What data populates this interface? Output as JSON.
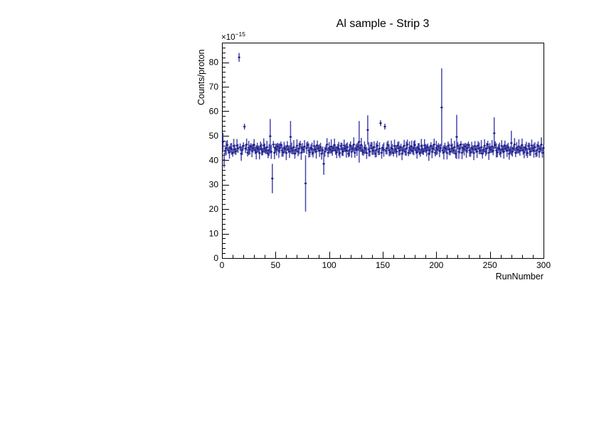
{
  "window": {
    "background": "#ffffff"
  },
  "chart_data": {
    "type": "scatter",
    "title": "Al sample - Strip 3",
    "xlabel": "RunNumber",
    "ylabel": "Counts/proton",
    "y_scale": {
      "prefix": "×10",
      "exponent": "−15"
    },
    "xlim": [
      0,
      300
    ],
    "ylim": [
      0,
      88
    ],
    "x_major_ticks": [
      0,
      50,
      100,
      150,
      200,
      250,
      300
    ],
    "x_minor_step": 10,
    "y_major_ticks": [
      0,
      10,
      20,
      30,
      40,
      50,
      60,
      70,
      80
    ],
    "y_minor_step": 2,
    "grid": false,
    "legend": false,
    "frame_color": "#000000",
    "error_bar_color": "#4545ad",
    "marker_color": "#1c1c72",
    "points": [
      [
        1,
        47.5,
        3.5
      ],
      [
        2,
        40.0,
        3.0
      ],
      [
        3,
        43.8,
        1.5
      ],
      [
        4,
        44.9,
        2.9
      ],
      [
        5,
        46.2,
        2.0
      ],
      [
        6,
        44.0,
        1.4
      ],
      [
        7,
        43.2,
        2.6
      ],
      [
        8,
        45.1,
        1.8
      ],
      [
        9,
        44.6,
        2.4
      ],
      [
        10,
        42.9,
        1.5
      ],
      [
        11,
        45.8,
        2.9
      ],
      [
        12,
        44.4,
        2.0
      ],
      [
        13,
        43.5,
        1.4
      ],
      [
        14,
        46.0,
        2.6
      ],
      [
        15,
        44.8,
        1.8
      ],
      [
        16,
        82.0,
        1.8
      ],
      [
        17,
        45.3,
        1.5
      ],
      [
        18,
        42.6,
        2.9
      ],
      [
        19,
        44.1,
        2.0
      ],
      [
        20,
        45.9,
        1.4
      ],
      [
        21,
        53.7,
        1.2
      ],
      [
        22,
        44.7,
        1.8
      ],
      [
        23,
        46.4,
        2.4
      ],
      [
        24,
        43.0,
        1.5
      ],
      [
        25,
        45.0,
        2.9
      ],
      [
        26,
        44.3,
        2.0
      ],
      [
        27,
        45.6,
        1.4
      ],
      [
        28,
        43.8,
        2.6
      ],
      [
        29,
        44.9,
        1.8
      ],
      [
        30,
        46.2,
        2.4
      ],
      [
        31,
        44.0,
        1.5
      ],
      [
        32,
        43.2,
        2.9
      ],
      [
        33,
        45.1,
        2.0
      ],
      [
        34,
        44.6,
        1.4
      ],
      [
        35,
        42.9,
        2.6
      ],
      [
        36,
        45.8,
        1.8
      ],
      [
        37,
        44.4,
        2.4
      ],
      [
        38,
        43.5,
        1.5
      ],
      [
        39,
        46.0,
        2.9
      ],
      [
        40,
        44.8,
        2.0
      ],
      [
        41,
        43.9,
        1.4
      ],
      [
        42,
        45.3,
        2.6
      ],
      [
        43,
        42.6,
        1.8
      ],
      [
        44,
        44.1,
        2.4
      ],
      [
        45,
        49.8,
        7.0
      ],
      [
        46,
        43.4,
        2.9
      ],
      [
        47,
        32.5,
        6.0
      ],
      [
        48,
        46.4,
        1.4
      ],
      [
        49,
        43.0,
        2.6
      ],
      [
        50,
        45.0,
        1.8
      ],
      [
        51,
        44.3,
        2.4
      ],
      [
        52,
        45.6,
        1.5
      ],
      [
        53,
        43.8,
        2.9
      ],
      [
        54,
        44.9,
        2.0
      ],
      [
        55,
        46.2,
        1.4
      ],
      [
        56,
        44.0,
        2.6
      ],
      [
        57,
        43.2,
        1.8
      ],
      [
        58,
        45.1,
        2.4
      ],
      [
        59,
        44.6,
        1.5
      ],
      [
        60,
        42.9,
        2.9
      ],
      [
        61,
        45.8,
        2.0
      ],
      [
        62,
        44.4,
        1.4
      ],
      [
        63,
        43.5,
        2.6
      ],
      [
        64,
        49.5,
        6.5
      ],
      [
        65,
        44.8,
        2.4
      ],
      [
        66,
        43.9,
        1.5
      ],
      [
        67,
        45.3,
        2.9
      ],
      [
        68,
        42.6,
        2.0
      ],
      [
        69,
        44.1,
        1.4
      ],
      [
        70,
        45.9,
        2.6
      ],
      [
        71,
        43.4,
        1.8
      ],
      [
        72,
        44.7,
        2.4
      ],
      [
        73,
        46.4,
        1.5
      ],
      [
        74,
        43.0,
        2.9
      ],
      [
        75,
        45.0,
        2.0
      ],
      [
        76,
        44.3,
        1.4
      ],
      [
        77,
        45.6,
        2.6
      ],
      [
        78,
        30.5,
        11.5
      ],
      [
        79,
        44.9,
        2.4
      ],
      [
        80,
        46.2,
        1.5
      ],
      [
        81,
        44.0,
        2.9
      ],
      [
        82,
        43.2,
        2.0
      ],
      [
        83,
        45.1,
        1.4
      ],
      [
        84,
        44.6,
        2.6
      ],
      [
        85,
        42.9,
        1.8
      ],
      [
        86,
        45.8,
        2.4
      ],
      [
        87,
        44.4,
        1.5
      ],
      [
        88,
        43.5,
        2.9
      ],
      [
        89,
        46.0,
        2.0
      ],
      [
        90,
        44.8,
        1.4
      ],
      [
        91,
        43.9,
        2.6
      ],
      [
        92,
        45.3,
        1.8
      ],
      [
        93,
        42.6,
        2.4
      ],
      [
        94,
        44.1,
        1.5
      ],
      [
        95,
        38.5,
        4.5
      ],
      [
        96,
        43.4,
        2.0
      ],
      [
        97,
        44.7,
        1.4
      ],
      [
        98,
        46.4,
        2.6
      ],
      [
        99,
        43.0,
        1.8
      ],
      [
        100,
        45.0,
        2.4
      ],
      [
        101,
        44.3,
        1.5
      ],
      [
        102,
        45.6,
        2.9
      ],
      [
        103,
        43.8,
        2.0
      ],
      [
        104,
        44.9,
        1.4
      ],
      [
        105,
        46.2,
        2.6
      ],
      [
        106,
        44.0,
        1.8
      ],
      [
        107,
        43.2,
        2.4
      ],
      [
        108,
        45.1,
        1.5
      ],
      [
        109,
        44.6,
        2.9
      ],
      [
        110,
        42.9,
        2.0
      ],
      [
        111,
        45.8,
        1.4
      ],
      [
        112,
        44.4,
        2.6
      ],
      [
        113,
        43.5,
        1.8
      ],
      [
        114,
        46.0,
        2.4
      ],
      [
        115,
        44.8,
        1.5
      ],
      [
        116,
        43.9,
        2.9
      ],
      [
        117,
        45.3,
        2.0
      ],
      [
        118,
        42.6,
        1.4
      ],
      [
        119,
        44.1,
        2.6
      ],
      [
        120,
        45.9,
        1.8
      ],
      [
        121,
        43.4,
        2.4
      ],
      [
        122,
        44.7,
        1.5
      ],
      [
        123,
        46.4,
        2.9
      ],
      [
        124,
        43.0,
        2.0
      ],
      [
        125,
        45.0,
        1.4
      ],
      [
        126,
        44.3,
        2.6
      ],
      [
        127,
        45.6,
        1.8
      ],
      [
        128,
        47.5,
        8.5
      ],
      [
        129,
        44.9,
        1.5
      ],
      [
        130,
        46.2,
        2.9
      ],
      [
        131,
        44.0,
        2.0
      ],
      [
        132,
        43.2,
        1.4
      ],
      [
        133,
        45.1,
        2.6
      ],
      [
        134,
        44.6,
        1.8
      ],
      [
        135,
        42.9,
        2.4
      ],
      [
        136,
        52.3,
        6.0
      ],
      [
        137,
        44.4,
        2.9
      ],
      [
        138,
        43.5,
        2.0
      ],
      [
        139,
        46.0,
        1.4
      ],
      [
        140,
        44.8,
        2.6
      ],
      [
        141,
        43.9,
        1.8
      ],
      [
        142,
        45.3,
        2.4
      ],
      [
        143,
        42.6,
        1.5
      ],
      [
        144,
        44.1,
        2.9
      ],
      [
        145,
        45.9,
        2.0
      ],
      [
        146,
        43.4,
        1.4
      ],
      [
        147,
        44.7,
        2.6
      ],
      [
        148,
        55.1,
        1.2
      ],
      [
        149,
        43.0,
        2.4
      ],
      [
        150,
        45.0,
        1.5
      ],
      [
        151,
        44.3,
        2.9
      ],
      [
        152,
        53.7,
        1.2
      ],
      [
        153,
        43.8,
        1.4
      ],
      [
        154,
        44.9,
        2.6
      ],
      [
        155,
        46.2,
        1.8
      ],
      [
        156,
        44.0,
        2.4
      ],
      [
        157,
        43.2,
        1.5
      ],
      [
        158,
        45.1,
        2.9
      ],
      [
        159,
        44.6,
        2.0
      ],
      [
        160,
        42.9,
        1.4
      ],
      [
        161,
        45.8,
        2.6
      ],
      [
        162,
        44.4,
        1.8
      ],
      [
        163,
        43.5,
        2.4
      ],
      [
        164,
        46.0,
        1.5
      ],
      [
        165,
        44.8,
        2.9
      ],
      [
        166,
        43.9,
        2.0
      ],
      [
        167,
        45.3,
        1.4
      ],
      [
        168,
        42.6,
        2.6
      ],
      [
        169,
        44.1,
        1.8
      ],
      [
        170,
        45.9,
        2.4
      ],
      [
        171,
        43.4,
        1.5
      ],
      [
        172,
        44.7,
        2.9
      ],
      [
        173,
        46.4,
        2.0
      ],
      [
        174,
        43.0,
        1.4
      ],
      [
        175,
        45.0,
        2.6
      ],
      [
        176,
        44.3,
        1.8
      ],
      [
        177,
        45.6,
        2.4
      ],
      [
        178,
        43.8,
        1.5
      ],
      [
        179,
        44.9,
        2.9
      ],
      [
        180,
        46.2,
        2.0
      ],
      [
        181,
        44.0,
        1.4
      ],
      [
        182,
        43.2,
        2.6
      ],
      [
        183,
        45.1,
        1.8
      ],
      [
        184,
        44.6,
        2.4
      ],
      [
        185,
        42.9,
        1.5
      ],
      [
        186,
        45.8,
        2.9
      ],
      [
        187,
        44.4,
        2.0
      ],
      [
        188,
        43.5,
        1.4
      ],
      [
        189,
        46.0,
        2.6
      ],
      [
        190,
        44.8,
        1.8
      ],
      [
        191,
        43.9,
        2.4
      ],
      [
        192,
        45.3,
        1.5
      ],
      [
        193,
        42.6,
        2.9
      ],
      [
        194,
        44.1,
        2.0
      ],
      [
        195,
        45.9,
        1.4
      ],
      [
        196,
        43.4,
        2.6
      ],
      [
        197,
        44.7,
        1.8
      ],
      [
        198,
        46.4,
        2.4
      ],
      [
        199,
        43.0,
        1.5
      ],
      [
        200,
        45.0,
        2.9
      ],
      [
        201,
        44.3,
        2.0
      ],
      [
        202,
        45.6,
        1.4
      ],
      [
        203,
        43.8,
        2.6
      ],
      [
        204,
        44.9,
        1.8
      ],
      [
        205,
        61.5,
        16.0
      ],
      [
        206,
        44.0,
        1.5
      ],
      [
        207,
        43.2,
        2.9
      ],
      [
        208,
        45.1,
        2.0
      ],
      [
        209,
        44.6,
        1.4
      ],
      [
        210,
        42.9,
        2.6
      ],
      [
        211,
        45.8,
        1.8
      ],
      [
        212,
        44.4,
        2.4
      ],
      [
        213,
        43.5,
        1.5
      ],
      [
        214,
        46.0,
        2.9
      ],
      [
        215,
        44.8,
        2.0
      ],
      [
        216,
        43.9,
        1.4
      ],
      [
        217,
        45.3,
        2.6
      ],
      [
        218,
        42.6,
        1.8
      ],
      [
        219,
        49.5,
        9.0
      ],
      [
        220,
        45.9,
        1.5
      ],
      [
        221,
        43.4,
        2.9
      ],
      [
        222,
        44.7,
        2.0
      ],
      [
        223,
        46.4,
        1.4
      ],
      [
        224,
        43.0,
        2.6
      ],
      [
        225,
        45.0,
        1.8
      ],
      [
        226,
        44.3,
        2.4
      ],
      [
        227,
        45.6,
        1.5
      ],
      [
        228,
        43.8,
        2.9
      ],
      [
        229,
        44.9,
        2.0
      ],
      [
        230,
        46.2,
        1.4
      ],
      [
        231,
        44.0,
        2.6
      ],
      [
        232,
        43.2,
        1.8
      ],
      [
        233,
        45.1,
        2.4
      ],
      [
        234,
        44.6,
        1.5
      ],
      [
        235,
        42.9,
        2.9
      ],
      [
        236,
        45.8,
        2.0
      ],
      [
        237,
        44.4,
        1.4
      ],
      [
        238,
        43.5,
        2.6
      ],
      [
        239,
        46.0,
        1.8
      ],
      [
        240,
        44.8,
        2.4
      ],
      [
        241,
        43.9,
        1.5
      ],
      [
        242,
        45.3,
        2.9
      ],
      [
        243,
        42.6,
        2.0
      ],
      [
        244,
        44.1,
        1.4
      ],
      [
        245,
        45.9,
        2.6
      ],
      [
        246,
        43.4,
        1.8
      ],
      [
        247,
        44.7,
        2.4
      ],
      [
        248,
        46.4,
        1.5
      ],
      [
        249,
        43.0,
        2.9
      ],
      [
        250,
        45.0,
        2.0
      ],
      [
        251,
        44.3,
        1.4
      ],
      [
        252,
        45.6,
        2.6
      ],
      [
        253,
        43.8,
        1.8
      ],
      [
        254,
        51.0,
        6.5
      ],
      [
        255,
        46.2,
        1.5
      ],
      [
        256,
        44.0,
        2.9
      ],
      [
        257,
        43.2,
        2.0
      ],
      [
        258,
        45.1,
        1.4
      ],
      [
        259,
        44.6,
        2.6
      ],
      [
        260,
        42.9,
        1.8
      ],
      [
        261,
        45.8,
        2.4
      ],
      [
        262,
        44.4,
        1.5
      ],
      [
        263,
        43.5,
        2.9
      ],
      [
        264,
        46.0,
        2.0
      ],
      [
        265,
        44.8,
        1.4
      ],
      [
        266,
        43.9,
        2.6
      ],
      [
        267,
        45.3,
        1.8
      ],
      [
        268,
        42.6,
        2.4
      ],
      [
        269,
        44.1,
        1.5
      ],
      [
        270,
        47.0,
        5.0
      ],
      [
        271,
        43.4,
        2.0
      ],
      [
        272,
        44.7,
        1.4
      ],
      [
        273,
        46.4,
        2.6
      ],
      [
        274,
        43.0,
        1.8
      ],
      [
        275,
        45.0,
        2.4
      ],
      [
        276,
        44.3,
        1.5
      ],
      [
        277,
        45.6,
        2.9
      ],
      [
        278,
        43.8,
        2.0
      ],
      [
        279,
        44.9,
        1.4
      ],
      [
        280,
        46.2,
        2.6
      ],
      [
        281,
        44.0,
        1.8
      ],
      [
        282,
        43.2,
        2.4
      ],
      [
        283,
        45.1,
        1.5
      ],
      [
        284,
        44.6,
        2.9
      ],
      [
        285,
        42.9,
        2.0
      ],
      [
        286,
        45.8,
        1.4
      ],
      [
        287,
        44.4,
        2.6
      ],
      [
        288,
        43.5,
        1.8
      ],
      [
        289,
        46.0,
        2.4
      ],
      [
        290,
        44.8,
        1.5
      ],
      [
        291,
        43.9,
        2.9
      ],
      [
        292,
        45.3,
        2.0
      ],
      [
        293,
        42.6,
        1.4
      ],
      [
        294,
        44.1,
        2.6
      ],
      [
        295,
        45.9,
        1.8
      ],
      [
        296,
        43.4,
        2.4
      ],
      [
        297,
        44.7,
        1.5
      ],
      [
        298,
        46.4,
        2.9
      ],
      [
        299,
        43.0,
        2.0
      ],
      [
        300,
        45.0,
        1.4
      ]
    ]
  }
}
